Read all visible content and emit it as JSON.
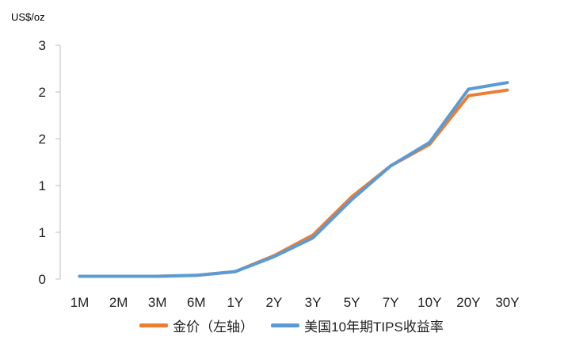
{
  "chart_data": {
    "type": "line",
    "unit_label": "US$/oz",
    "categories": [
      "1M",
      "2M",
      "3M",
      "6M",
      "1Y",
      "2Y",
      "3Y",
      "5Y",
      "7Y",
      "10Y",
      "20Y",
      "30Y"
    ],
    "y_tick_labels": [
      "0",
      "1",
      "1",
      "2",
      "2",
      "3"
    ],
    "ylim": [
      0,
      2.5
    ],
    "y_tick_values": [
      0,
      0.5,
      1.0,
      1.5,
      2.0,
      2.5
    ],
    "grid": false,
    "legend_position": "bottom",
    "series": [
      {
        "name": "金价（左轴）",
        "color": "#ED7D31",
        "values": [
          0.03,
          0.03,
          0.03,
          0.04,
          0.08,
          0.25,
          0.47,
          0.88,
          1.21,
          1.44,
          1.96,
          2.02
        ]
      },
      {
        "name": "美国10年期TIPS收益率",
        "color": "#5B9BD5",
        "values": [
          0.03,
          0.03,
          0.03,
          0.04,
          0.08,
          0.24,
          0.44,
          0.85,
          1.21,
          1.46,
          2.03,
          2.1
        ]
      }
    ]
  }
}
